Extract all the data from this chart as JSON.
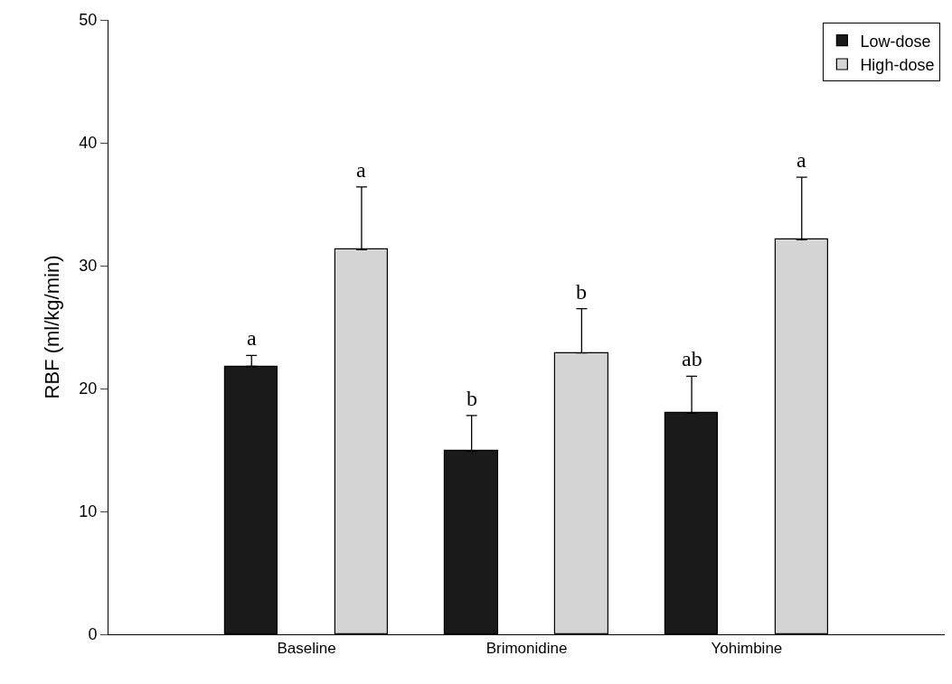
{
  "chart_data": {
    "type": "bar",
    "ylabel": "RBF (ml/kg/min)",
    "categories": [
      "Baseline",
      "Brimonidine",
      "Yohimbine"
    ],
    "series": [
      {
        "name": "Low-dose",
        "color": "#1a1a1a",
        "values": [
          21.8,
          14.9,
          18.0
        ],
        "errors": [
          [
            21.8,
            22.7
          ],
          [
            14.9,
            17.8
          ],
          [
            18.0,
            21.0
          ]
        ],
        "value_labels": [
          "a",
          "b",
          "ab"
        ]
      },
      {
        "name": "High-dose",
        "color": "#d4d4d4",
        "values": [
          31.3,
          22.9,
          32.1
        ],
        "errors": [
          [
            31.3,
            36.4
          ],
          [
            22.9,
            26.5
          ],
          [
            32.1,
            37.2
          ]
        ],
        "value_labels": [
          "a",
          "b",
          "a"
        ]
      }
    ],
    "ylim": [
      0,
      50
    ],
    "yticks": [
      0,
      10,
      20,
      30,
      40,
      50
    ],
    "legend": "top right"
  }
}
